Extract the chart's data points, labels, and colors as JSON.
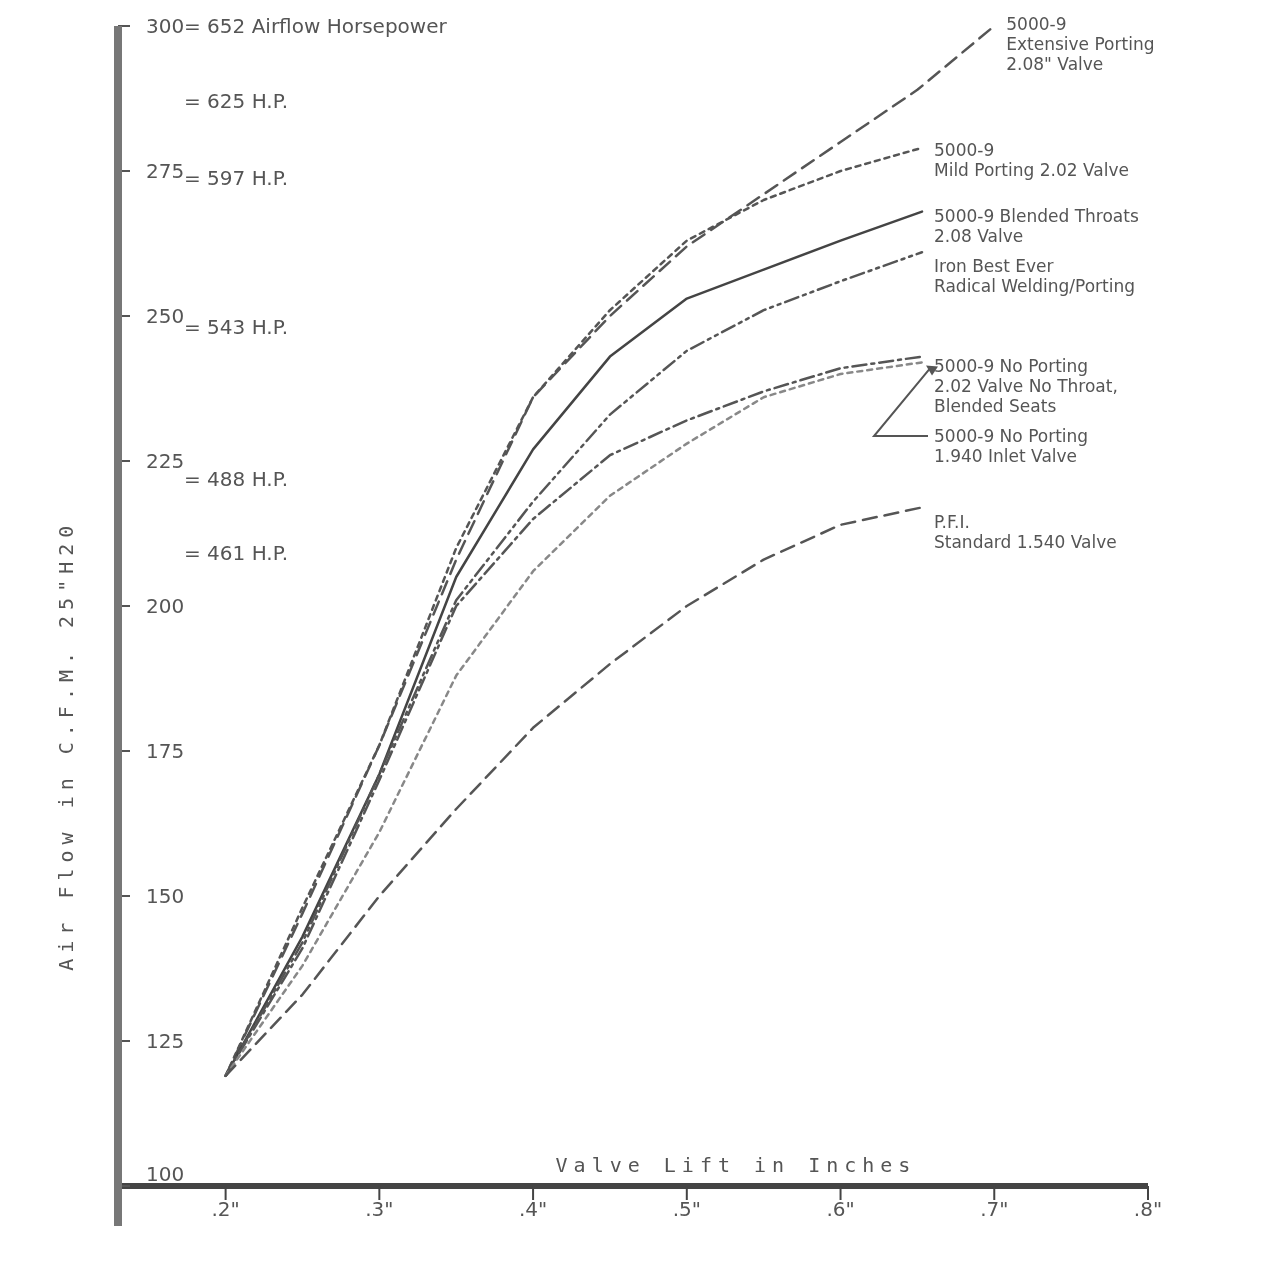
{
  "chart_data": {
    "type": "line",
    "xlabel": "Valve Lift in Inches",
    "ylabel": "Air Flow in C.F.M. 25\"H20",
    "xlim": [
      0.13,
      0.8
    ],
    "xticks": [
      {
        "value": 0.2,
        "label": ".2\""
      },
      {
        "value": 0.3,
        "label": ".3\""
      },
      {
        "value": 0.4,
        "label": ".4\""
      },
      {
        "value": 0.5,
        "label": ".5\""
      },
      {
        "value": 0.6,
        "label": ".6\""
      },
      {
        "value": 0.7,
        "label": ".7\""
      },
      {
        "value": 0.8,
        "label": ".8\""
      }
    ],
    "ylim": [
      100,
      300
    ],
    "yticks": [
      100,
      125,
      150,
      175,
      200,
      225,
      250,
      275,
      300
    ],
    "y2lim": [
      217.33,
      652
    ],
    "y2ticks": [
      {
        "value": 461,
        "label": "= 461 H.P."
      },
      {
        "value": 488,
        "label": "= 488 H.P."
      },
      {
        "value": 543,
        "label": "= 543 H.P."
      },
      {
        "value": 597,
        "label": "= 597 H.P."
      },
      {
        "value": 625,
        "label": "= 625 H.P."
      },
      {
        "value": 652,
        "label": "= 652 Airflow Horsepower"
      }
    ],
    "legend": "right",
    "marker": "none",
    "series": [
      {
        "name": "5000-9\nExtensive Porting\n2.08\" Valve",
        "color": "#555555",
        "line_style": "dashed",
        "x": [
          0.2,
          0.25,
          0.3,
          0.35,
          0.4,
          0.45,
          0.5,
          0.55,
          0.6,
          0.65,
          0.7
        ],
        "values": [
          119,
          147,
          176,
          208,
          236,
          250,
          262,
          271,
          280,
          289,
          300
        ]
      },
      {
        "name": "5000-9\nMild Porting 2.02 Valve",
        "color": "#555555",
        "line_style": "dotted",
        "x": [
          0.2,
          0.25,
          0.3,
          0.35,
          0.4,
          0.45,
          0.5,
          0.55,
          0.6,
          0.653
        ],
        "values": [
          119,
          148,
          176,
          210,
          236,
          251,
          263,
          270,
          275,
          279
        ]
      },
      {
        "name": "5000-9 Blended Throats\n2.08 Valve",
        "color": "#444444",
        "line_style": "solid",
        "x": [
          0.2,
          0.25,
          0.3,
          0.35,
          0.4,
          0.45,
          0.5,
          0.55,
          0.6,
          0.653
        ],
        "values": [
          119,
          143,
          171,
          205,
          227,
          243,
          253,
          258,
          263,
          268
        ]
      },
      {
        "name": "Iron Best Ever\nRadical Welding/Porting",
        "color": "#555555",
        "line_style": "dashdotdot",
        "x": [
          0.2,
          0.25,
          0.3,
          0.35,
          0.4,
          0.45,
          0.5,
          0.55,
          0.6,
          0.653
        ],
        "values": [
          119,
          142,
          171,
          201,
          218,
          233,
          244,
          251,
          256,
          261
        ]
      },
      {
        "name": "5000-9 No Porting\n2.02 Valve No Throat,\nBlended Seats",
        "color": "#555555",
        "line_style": "dashdot",
        "x": [
          0.2,
          0.25,
          0.3,
          0.35,
          0.4,
          0.45,
          0.5,
          0.55,
          0.6,
          0.653
        ],
        "values": [
          119,
          141,
          170,
          200,
          215,
          226,
          232,
          237,
          241,
          243
        ]
      },
      {
        "name": "5000-9 No Porting\n1.940 Inlet Valve",
        "color": "#888888",
        "line_style": "dotted",
        "x": [
          0.2,
          0.25,
          0.3,
          0.35,
          0.4,
          0.45,
          0.5,
          0.55,
          0.6,
          0.653
        ],
        "values": [
          119,
          138,
          161,
          188,
          206,
          219,
          228,
          236,
          240,
          242
        ]
      },
      {
        "name": "P.F.I.\nStandard 1.540 Valve",
        "color": "#555555",
        "line_style": "dashed",
        "x": [
          0.2,
          0.25,
          0.3,
          0.35,
          0.4,
          0.45,
          0.5,
          0.55,
          0.6,
          0.653
        ],
        "values": [
          119,
          133,
          150,
          165,
          179,
          190,
          200,
          208,
          214,
          217
        ]
      }
    ]
  }
}
